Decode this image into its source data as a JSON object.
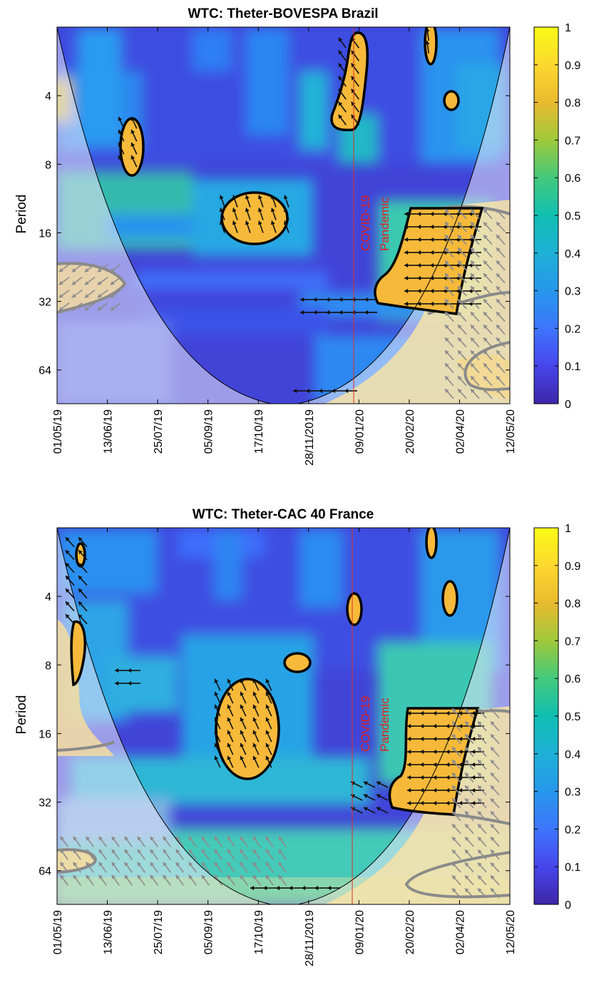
{
  "chart_data": [
    {
      "type": "heatmap",
      "title": "WTC: Theter-BOVESPA Brazil",
      "ylabel": "Period",
      "y_scale": "log2",
      "y_ticks": [
        4,
        8,
        16,
        32,
        64
      ],
      "y_range": [
        2,
        90
      ],
      "x_ticks": [
        "01/05/19",
        "13/06/19",
        "25/07/19",
        "05/09/19",
        "17/10/19",
        "28/11/2019",
        "09/01/20",
        "20/02/20",
        "02/04/20",
        "12/05/20"
      ],
      "colorbar": {
        "min": 0,
        "max": 1,
        "ticks": [
          0,
          0.1,
          0.2,
          0.3,
          0.4,
          0.5,
          0.6,
          0.7,
          0.8,
          0.9,
          1
        ],
        "colors": [
          "#3e26a8",
          "#4746eb",
          "#3e75fd",
          "#2797eb",
          "#1eb0d6",
          "#10bfb2",
          "#43c97b",
          "#9fc93b",
          "#e9ba2f",
          "#fcd82e",
          "#f9fb15"
        ]
      },
      "annotation": {
        "text_line1": "COVID-19",
        "text_line2": "Pandemic",
        "at_date": "01/01/20"
      },
      "significant_regions": [
        {
          "x_center": "25/06/19",
          "period_center": 6.5,
          "coherence": 0.85
        },
        {
          "x_center": "17/10/19",
          "period_center": 15,
          "coherence": 0.85
        },
        {
          "x_center": "01/01/20",
          "period_center": 3.6,
          "coherence": 0.85
        },
        {
          "x_center": "25/02/20",
          "period_center": 20,
          "coherence": 0.87
        },
        {
          "x_center": "28/03/20",
          "period_center": 4.3,
          "coherence": 0.85
        }
      ]
    },
    {
      "type": "heatmap",
      "title": "WTC: Theter-CAC 40 France",
      "ylabel": "Period",
      "y_scale": "log2",
      "y_ticks": [
        4,
        8,
        16,
        32,
        64
      ],
      "y_range": [
        2,
        90
      ],
      "x_ticks": [
        "01/05/19",
        "13/06/19",
        "25/07/19",
        "05/09/19",
        "17/10/19",
        "28/11/2019",
        "09/01/20",
        "20/02/20",
        "02/04/20",
        "12/05/20"
      ],
      "colorbar": {
        "min": 0,
        "max": 1,
        "ticks": [
          0,
          0.1,
          0.2,
          0.3,
          0.4,
          0.5,
          0.6,
          0.7,
          0.8,
          0.9,
          1
        ],
        "colors": [
          "#3e26a8",
          "#4746eb",
          "#3e75fd",
          "#2797eb",
          "#1eb0d6",
          "#10bfb2",
          "#43c97b",
          "#9fc93b",
          "#e9ba2f",
          "#fcd82e",
          "#f9fb15"
        ]
      },
      "annotation": {
        "text_line1": "COVID-19",
        "text_line2": "Pandemic",
        "at_date": "01/01/20"
      },
      "significant_regions": [
        {
          "x_center": "10/10/19",
          "period_center": 17,
          "coherence": 0.85
        },
        {
          "x_center": "15/11/19",
          "period_center": 8,
          "coherence": 0.85
        },
        {
          "x_center": "01/01/20",
          "period_center": 4.6,
          "coherence": 0.85
        },
        {
          "x_center": "25/02/20",
          "period_center": 20,
          "coherence": 0.87
        },
        {
          "x_center": "28/03/20",
          "period_center": 3.6,
          "coherence": 0.85
        }
      ]
    }
  ]
}
